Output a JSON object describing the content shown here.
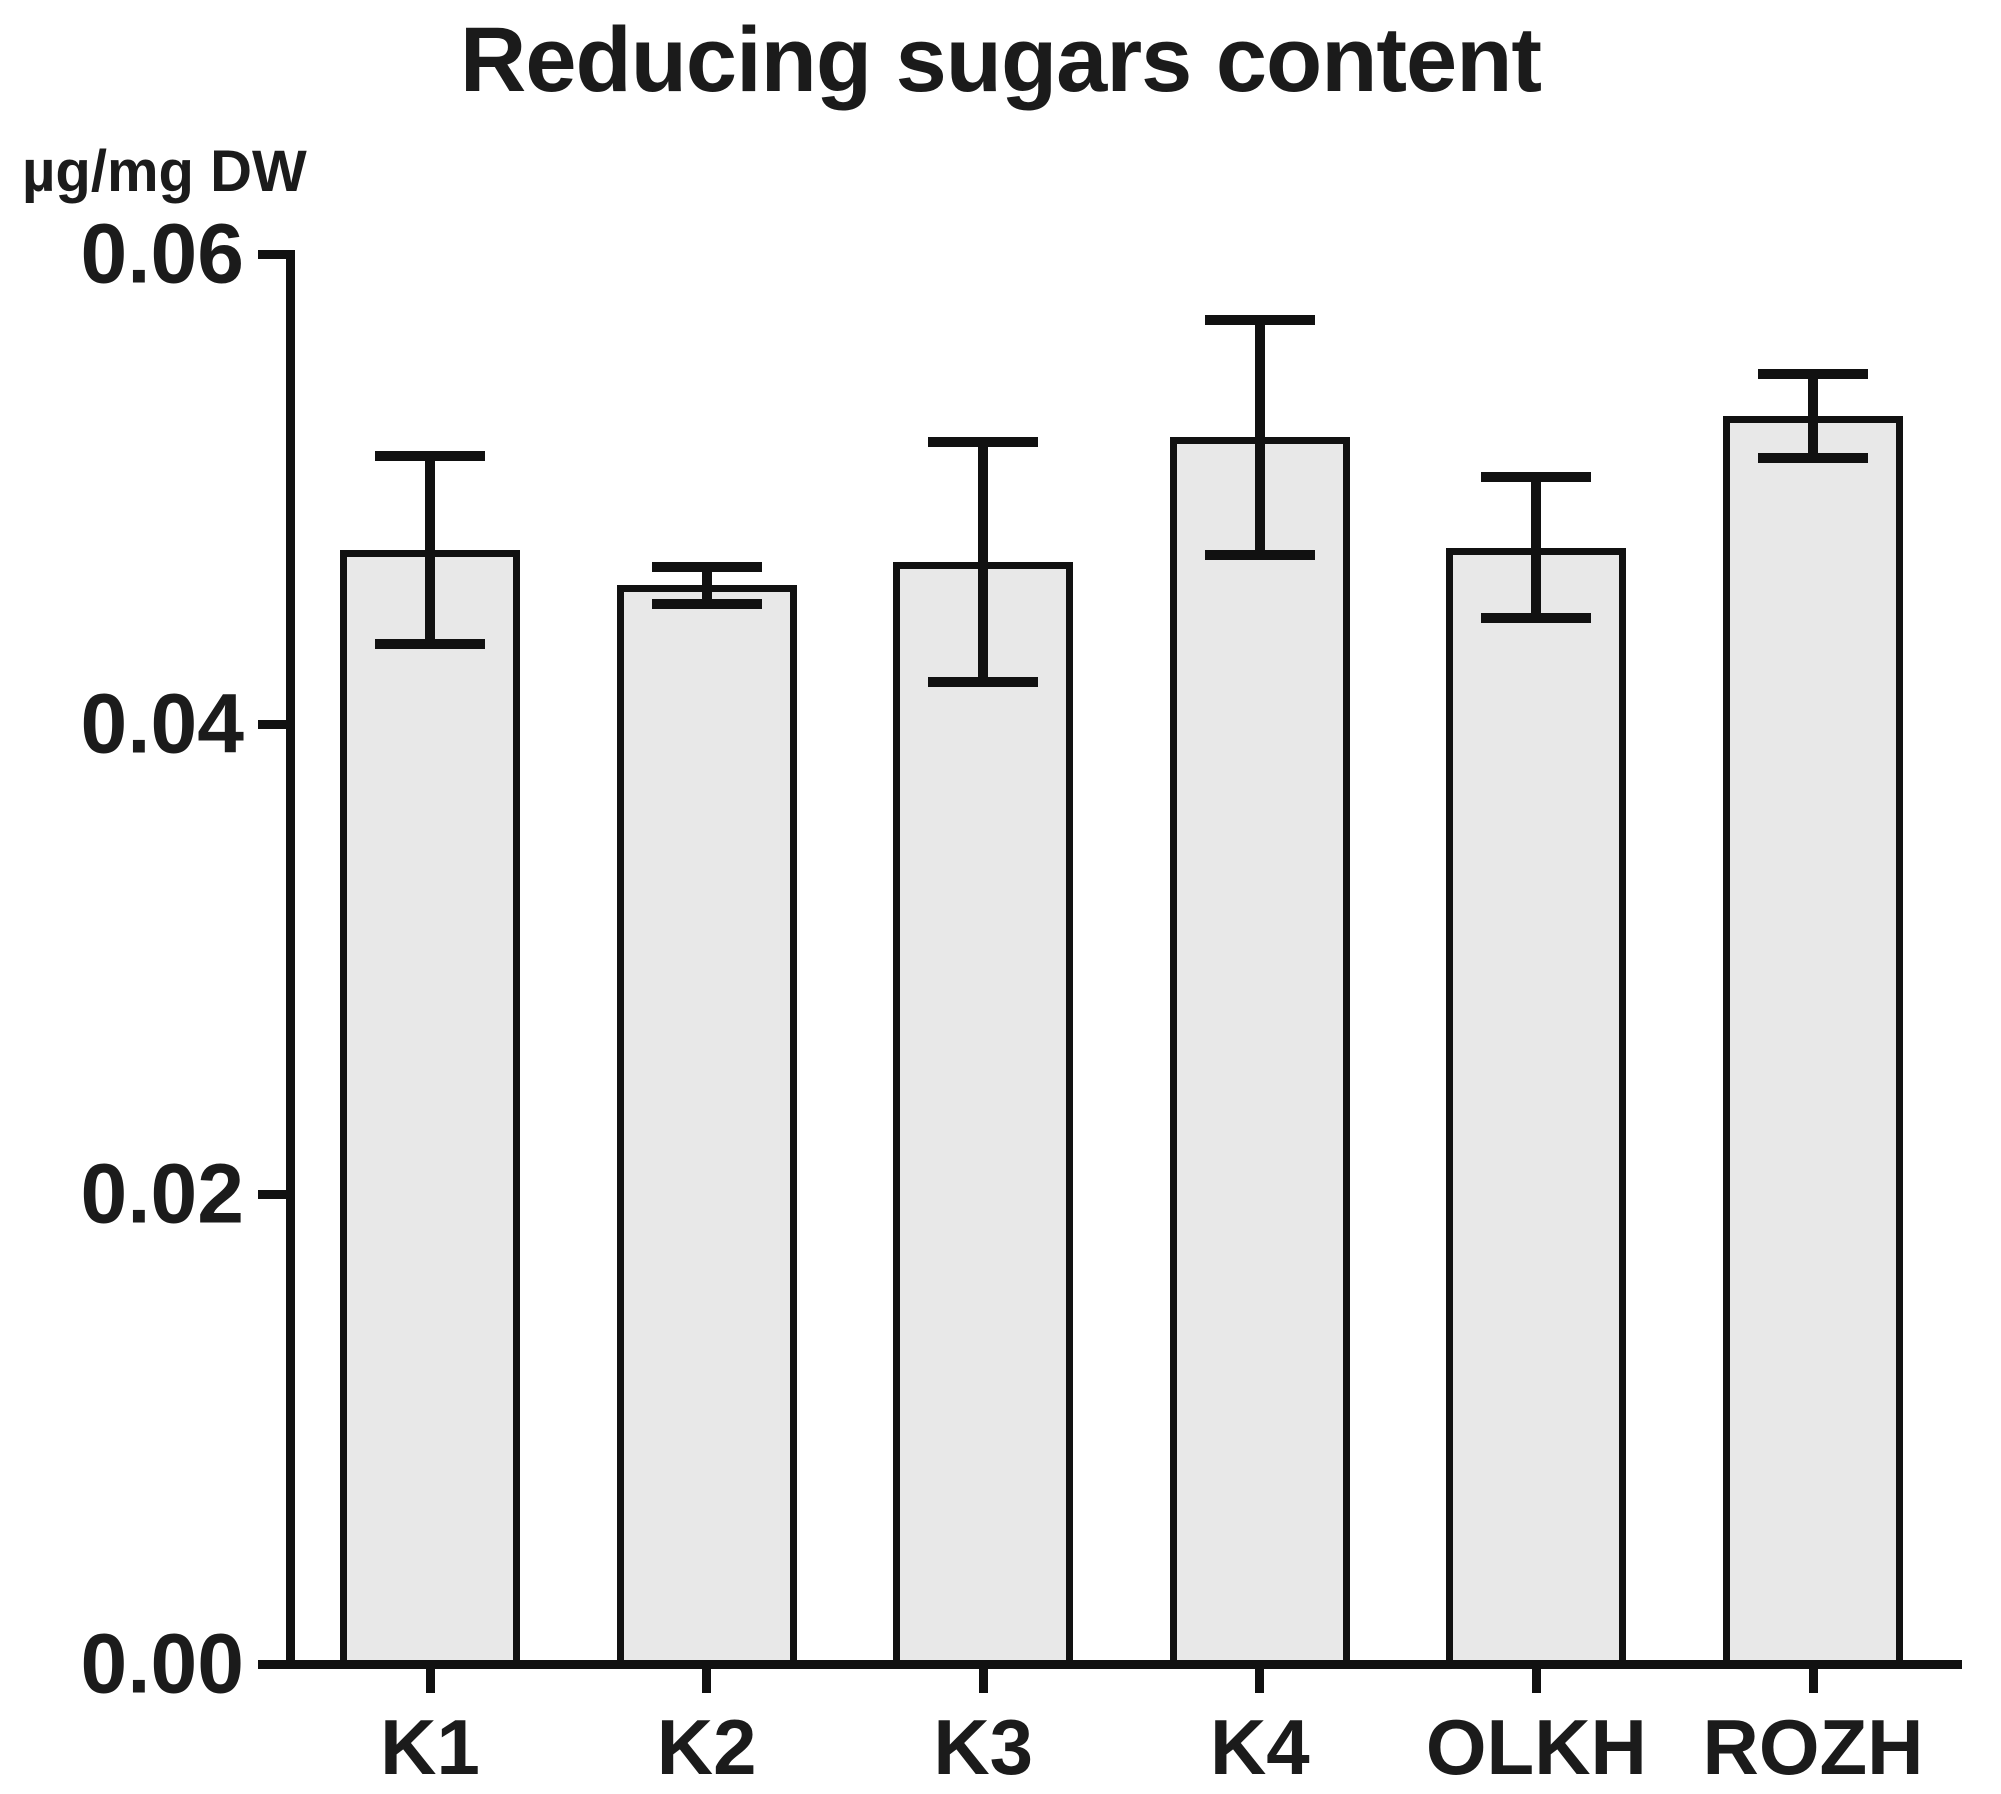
{
  "chart_data": {
    "type": "bar",
    "title": "Reducing sugars content",
    "ylabel": "µg/mg DW",
    "xlabel": "",
    "categories": [
      "K1",
      "K2",
      "K3",
      "K4",
      "OLKH",
      "ROZH"
    ],
    "values": [
      0.0474,
      0.0459,
      0.0469,
      0.0522,
      0.0475,
      0.0531
    ],
    "errors": [
      0.004,
      0.0008,
      0.0051,
      0.005,
      0.003,
      0.0018
    ],
    "series": [
      {
        "name": "Reducing sugars",
        "values": [
          0.0474,
          0.0459,
          0.0469,
          0.0522,
          0.0475,
          0.0531
        ],
        "errors": [
          0.004,
          0.0008,
          0.0051,
          0.005,
          0.003,
          0.0018
        ]
      }
    ],
    "ylim": [
      0,
      0.06
    ],
    "ytick_values": [
      0,
      0.02,
      0.04,
      0.06
    ],
    "yticks": [
      "0.00",
      "0.02",
      "0.04",
      "0.06"
    ],
    "grid": false,
    "legend_position": "none",
    "bar_fill": "#e8e8e8",
    "bar_border": "#111111",
    "error_color": "#111111"
  }
}
